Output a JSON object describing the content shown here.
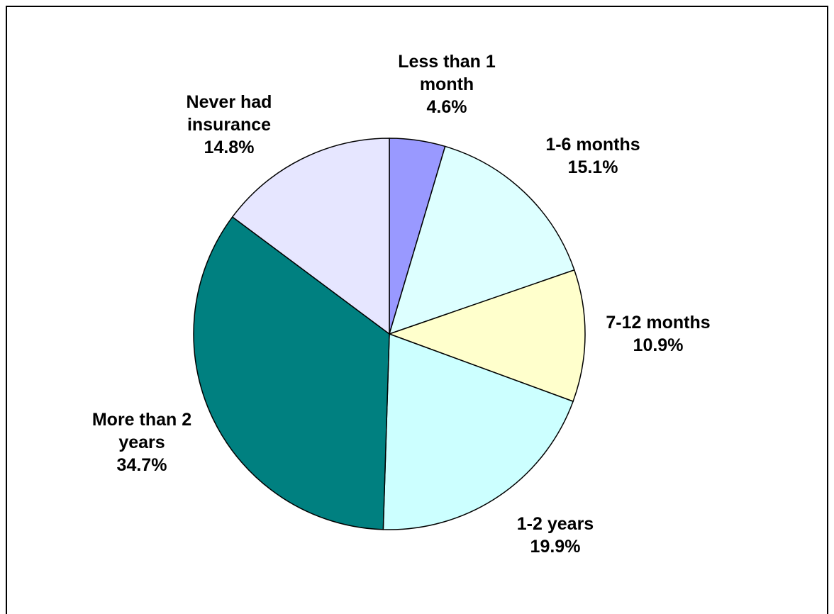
{
  "chart_data": {
    "type": "pie",
    "slices": [
      {
        "label_lines": [
          "Less than 1",
          "month"
        ],
        "value_label": "4.6%",
        "value": 4.6,
        "color": "#9999ff"
      },
      {
        "label_lines": [
          "1-6 months"
        ],
        "value_label": "15.1%",
        "value": 15.1,
        "color": "#ddffff"
      },
      {
        "label_lines": [
          "7-12 months"
        ],
        "value_label": "10.9%",
        "value": 10.9,
        "color": "#ffffcc"
      },
      {
        "label_lines": [
          "1-2 years"
        ],
        "value_label": "19.9%",
        "value": 19.9,
        "color": "#ccffff"
      },
      {
        "label_lines": [
          "More than 2",
          "years"
        ],
        "value_label": "34.7%",
        "value": 34.7,
        "color": "#008080"
      },
      {
        "label_lines": [
          "Never had",
          "insurance"
        ],
        "value_label": "14.8%",
        "value": 14.8,
        "color": "#e6e6ff"
      }
    ],
    "start_angle": "12 o'clock",
    "direction": "clockwise"
  }
}
